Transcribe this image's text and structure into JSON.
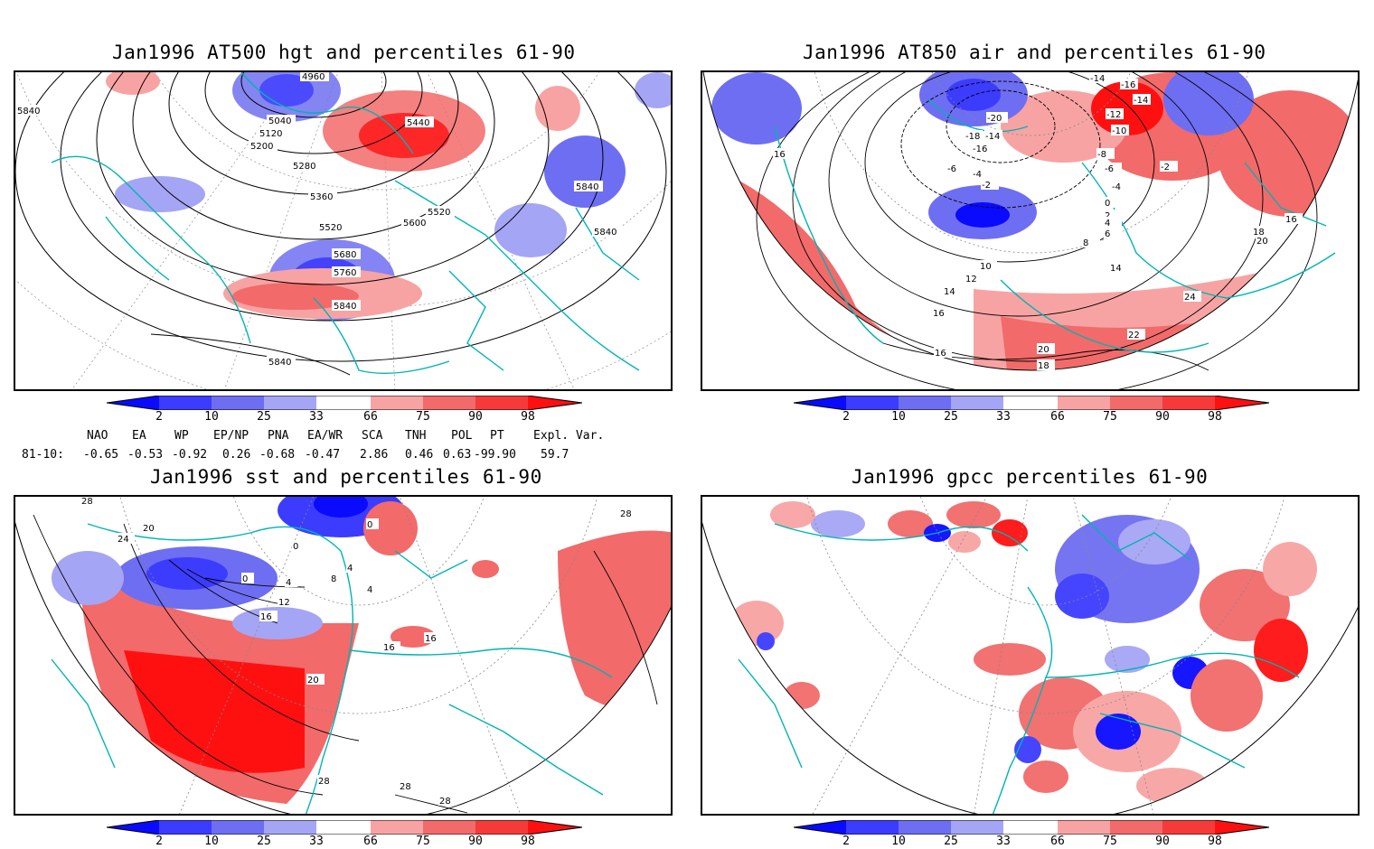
{
  "panels": [
    {
      "title": "Jan1996 AT500 hgt and percentiles 61-90",
      "contour_labels": [
        "4960",
        "5040",
        "5120",
        "5200",
        "5280",
        "5360",
        "5440",
        "5520",
        "5520",
        "5600",
        "5680",
        "5760",
        "5840",
        "5840",
        "5840",
        "5840",
        "5840"
      ]
    },
    {
      "title": "Jan1996 AT850 air and percentiles 61-90",
      "contour_labels": [
        "-18",
        "-16",
        "-16",
        "-14",
        "-14",
        "-14",
        "-12",
        "-10",
        "-8",
        "-6",
        "-6",
        "-4",
        "-4",
        "-2",
        "-2",
        "0",
        "2",
        "4",
        "6",
        "8",
        "10",
        "12",
        "14",
        "14",
        "16",
        "16",
        "16",
        "16",
        "18",
        "18",
        "20",
        "20",
        "22",
        "24",
        "-20"
      ]
    },
    {
      "title": "Jan1996 sst and percentiles 61-90",
      "contour_labels": [
        "28",
        "24",
        "20",
        "0",
        "0",
        "4",
        "4",
        "8",
        "12",
        "16",
        "16",
        "16",
        "20",
        "28",
        "28",
        "28",
        "28",
        "0",
        "4"
      ]
    },
    {
      "title": "Jan1996 gpcc percentiles 61-90",
      "contour_labels": []
    }
  ],
  "colorbar": {
    "labels": [
      "2",
      "10",
      "25",
      "33",
      "66",
      "75",
      "90",
      "98"
    ],
    "colors": [
      "#0a0aff",
      "#3c3cff",
      "#6e6ef2",
      "#a5a5f5",
      "#ffffff",
      "#f8a3a3",
      "#f26a6a",
      "#f53a3a",
      "#ff1010"
    ]
  },
  "indices": {
    "headers": [
      "NAO",
      "EA",
      "WP",
      "EP/NP",
      "PNA",
      "EA/WR",
      "SCA",
      "TNH",
      "POL",
      "PT",
      "Expl. Var."
    ],
    "row_label": "81-10:",
    "values": [
      "-0.65",
      "-0.53",
      "-0.92",
      "0.26",
      "-0.68",
      "-0.47",
      "2.86",
      "0.46",
      "0.63",
      "-99.90",
      "59.7"
    ]
  },
  "colors": {
    "coast": "#00b4b4",
    "grid": "#888888",
    "frame": "#000000"
  }
}
